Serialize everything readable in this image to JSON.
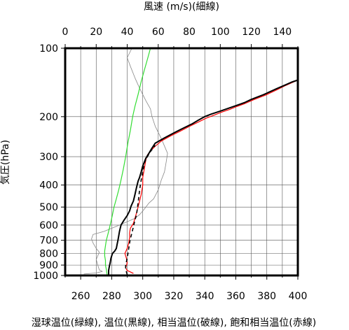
{
  "chart_data": {
    "type": "line",
    "top_axis_label": "風速 (m/s)(細線)",
    "left_axis_label": "気圧(hPa)",
    "bottom_axis_label": "湿球温位(緑線), 温位(黒線), 相当温位(破線), 飽和相当温位(赤線)",
    "top_axis": {
      "range": [
        0,
        150
      ],
      "ticks": [
        "0",
        "20",
        "40",
        "60",
        "80",
        "100",
        "120",
        "140"
      ],
      "tick_values": [
        0,
        20,
        40,
        60,
        80,
        100,
        120,
        140
      ]
    },
    "bottom_axis": {
      "range": [
        250,
        400
      ],
      "ticks": [
        "260",
        "280",
        "300",
        "320",
        "340",
        "360",
        "380",
        "400"
      ],
      "tick_values": [
        260,
        280,
        300,
        320,
        340,
        360,
        380,
        400
      ]
    },
    "left_axis": {
      "scale": "log",
      "range": [
        1000,
        100
      ],
      "ticks": [
        "100",
        "200",
        "300",
        "400",
        "500",
        "600",
        "700",
        "800",
        "900",
        "1000"
      ],
      "tick_values": [
        100,
        200,
        300,
        400,
        500,
        600,
        700,
        800,
        900,
        1000
      ]
    },
    "grid": true,
    "colors": {
      "wet_bulb": "#33dd33",
      "potential": "#000000",
      "equivalent": "#000000",
      "saturated": "#ff0000",
      "wind": "#888888"
    },
    "series": [
      {
        "key": "wind",
        "axis": "top",
        "points": [
          [
            12,
            985
          ],
          [
            20,
            975
          ],
          [
            24,
            960
          ],
          [
            22,
            945
          ],
          [
            21,
            900
          ],
          [
            20,
            850
          ],
          [
            21,
            820
          ],
          [
            22,
            790
          ],
          [
            20,
            760
          ],
          [
            18,
            720
          ],
          [
            17,
            690
          ],
          [
            18,
            660
          ],
          [
            25,
            640
          ],
          [
            30,
            620
          ],
          [
            35,
            600
          ],
          [
            40,
            580
          ],
          [
            45,
            560
          ],
          [
            48,
            540
          ],
          [
            50,
            520
          ],
          [
            52,
            500
          ],
          [
            54,
            480
          ],
          [
            57,
            460
          ],
          [
            60,
            420
          ],
          [
            62,
            380
          ],
          [
            64,
            350
          ],
          [
            65,
            320
          ],
          [
            66,
            290
          ],
          [
            62,
            250
          ],
          [
            58,
            220
          ],
          [
            56,
            200
          ],
          [
            55,
            185
          ],
          [
            52,
            170
          ],
          [
            48,
            150
          ],
          [
            45,
            135
          ],
          [
            42,
            120
          ],
          [
            40,
            110
          ],
          [
            43,
            100
          ]
        ]
      },
      {
        "key": "wet_bulb",
        "axis": "bottom",
        "points": [
          [
            277,
            990
          ],
          [
            276.5,
            940
          ],
          [
            276,
            900
          ],
          [
            276,
            860
          ],
          [
            275.5,
            820
          ],
          [
            275.5,
            780
          ],
          [
            276,
            740
          ],
          [
            276.5,
            700
          ],
          [
            277.5,
            660
          ],
          [
            278.5,
            620
          ],
          [
            279.5,
            580
          ],
          [
            280.5,
            540
          ],
          [
            281.5,
            500
          ],
          [
            283,
            460
          ],
          [
            284.5,
            420
          ],
          [
            286,
            380
          ],
          [
            287.5,
            340
          ],
          [
            289,
            300
          ],
          [
            290.5,
            260
          ],
          [
            292,
            230
          ],
          [
            293.5,
            200
          ],
          [
            295,
            180
          ],
          [
            297,
            160
          ],
          [
            299,
            140
          ],
          [
            301,
            125
          ],
          [
            303,
            112
          ],
          [
            305,
            100
          ]
        ]
      },
      {
        "key": "potential",
        "axis": "bottom",
        "points": [
          [
            278,
            990
          ],
          [
            278,
            950
          ],
          [
            278.5,
            910
          ],
          [
            279,
            880
          ],
          [
            279.5,
            840
          ],
          [
            280.5,
            800
          ],
          [
            282,
            780
          ],
          [
            283,
            760
          ],
          [
            283.5,
            730
          ],
          [
            284,
            700
          ],
          [
            284.5,
            670
          ],
          [
            285,
            640
          ],
          [
            286,
            600
          ],
          [
            288,
            570
          ],
          [
            290,
            545
          ],
          [
            291.5,
            520
          ],
          [
            292.5,
            495
          ],
          [
            294,
            470
          ],
          [
            295,
            440
          ],
          [
            296,
            410
          ],
          [
            297,
            385
          ],
          [
            298,
            370
          ],
          [
            299,
            350
          ],
          [
            300,
            330
          ],
          [
            302,
            305
          ],
          [
            304,
            290
          ],
          [
            306,
            275
          ],
          [
            308,
            262
          ],
          [
            314,
            248
          ],
          [
            320,
            236
          ],
          [
            326,
            225
          ],
          [
            332,
            215
          ],
          [
            336,
            207
          ],
          [
            340,
            200
          ],
          [
            344,
            195
          ],
          [
            350,
            189
          ],
          [
            355,
            184
          ],
          [
            360,
            179
          ],
          [
            366,
            173
          ],
          [
            370,
            168
          ],
          [
            378,
            160
          ],
          [
            386,
            151
          ],
          [
            392,
            145
          ],
          [
            396,
            141
          ],
          [
            400,
            138
          ]
        ]
      },
      {
        "key": "equivalent",
        "axis": "bottom",
        "points": [
          [
            290,
            990
          ],
          [
            289.5,
            965
          ],
          [
            289,
            930
          ],
          [
            289,
            900
          ],
          [
            289.5,
            870
          ],
          [
            290,
            840
          ],
          [
            290.5,
            800
          ],
          [
            291,
            760
          ],
          [
            291.5,
            720
          ],
          [
            292,
            690
          ],
          [
            293,
            650
          ],
          [
            294,
            610
          ],
          [
            295,
            570
          ],
          [
            296,
            540
          ],
          [
            296.5,
            510
          ],
          [
            297,
            480
          ],
          [
            297.5,
            450
          ],
          [
            298,
            420
          ],
          [
            298.5,
            400
          ],
          [
            299,
            380
          ],
          [
            300,
            350
          ],
          [
            301,
            320
          ],
          [
            303,
            300
          ],
          [
            305,
            285
          ],
          [
            308,
            268
          ]
        ]
      },
      {
        "key": "saturated",
        "axis": "bottom",
        "points": [
          [
            294,
            980
          ],
          [
            290,
            950
          ],
          [
            289,
            925
          ],
          [
            290,
            880
          ],
          [
            289.5,
            840
          ],
          [
            288.5,
            800
          ],
          [
            290,
            760
          ],
          [
            291,
            720
          ],
          [
            291.5,
            680
          ],
          [
            291.5,
            650
          ],
          [
            292,
            620
          ],
          [
            294,
            590
          ],
          [
            295,
            560
          ],
          [
            296,
            530
          ],
          [
            297,
            500
          ],
          [
            298,
            470
          ],
          [
            299,
            440
          ],
          [
            300,
            400
          ],
          [
            300,
            370
          ],
          [
            301,
            340
          ],
          [
            302,
            310
          ],
          [
            303,
            295
          ],
          [
            305,
            283
          ],
          [
            308,
            270
          ],
          [
            312,
            256
          ],
          [
            318,
            243
          ],
          [
            324,
            232
          ],
          [
            330,
            221
          ],
          [
            336,
            211
          ],
          [
            341,
            203
          ],
          [
            346,
            197
          ],
          [
            351,
            191
          ],
          [
            356,
            186
          ],
          [
            361,
            180
          ],
          [
            366,
            175
          ],
          [
            372,
            168
          ],
          [
            379,
            161
          ],
          [
            386,
            153
          ],
          [
            392,
            146
          ],
          [
            397,
            141
          ],
          [
            400,
            138
          ]
        ]
      }
    ]
  }
}
